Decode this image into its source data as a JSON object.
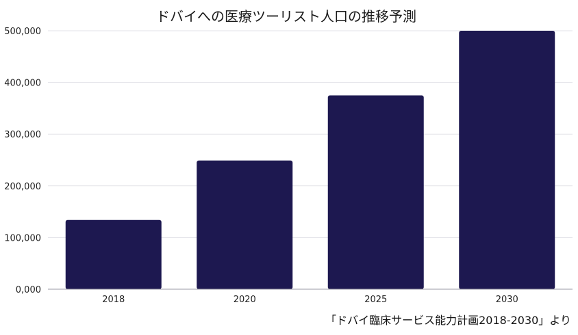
{
  "chart_data": {
    "type": "bar",
    "title": "ドバイへの医療ツーリスト人口の推移予測",
    "categories": [
      "2018",
      "2020",
      "2025",
      "2030"
    ],
    "values": [
      134000,
      249000,
      375000,
      500000
    ],
    "yticks": [
      "0,000",
      "100,000",
      "200,000",
      "300,000",
      "400,000",
      "500,000"
    ],
    "ylim": [
      0,
      500000
    ],
    "grid": true,
    "bar_color": "#1d1850",
    "source": "「ドバイ臨床サービス能力計画2018-2030」より"
  }
}
